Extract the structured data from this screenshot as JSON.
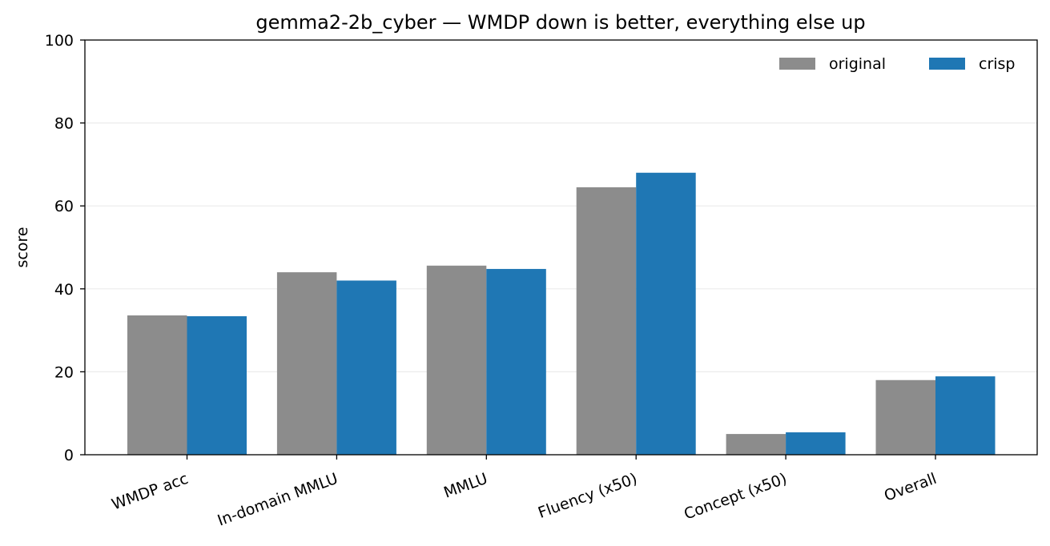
{
  "chart_data": {
    "type": "bar",
    "title": "gemma2-2b_cyber — WMDP down is better, everything else up",
    "xlabel": "",
    "ylabel": "score",
    "ylim": [
      0,
      100
    ],
    "yticks": [
      0,
      20,
      40,
      60,
      80,
      100
    ],
    "grid": "horizontal",
    "legend_position": "top-right",
    "categories": [
      "WMDP acc",
      "In-domain MMLU",
      "MMLU",
      "Fluency (x50)",
      "Concept (x50)",
      "Overall"
    ],
    "series": [
      {
        "name": "original",
        "color": "#8c8c8c",
        "values": [
          33.6,
          44.0,
          45.6,
          64.5,
          5.0,
          18.0
        ]
      },
      {
        "name": "crisp",
        "color": "#1f77b4",
        "values": [
          33.4,
          42.0,
          44.8,
          68.0,
          5.4,
          18.9
        ]
      }
    ]
  }
}
